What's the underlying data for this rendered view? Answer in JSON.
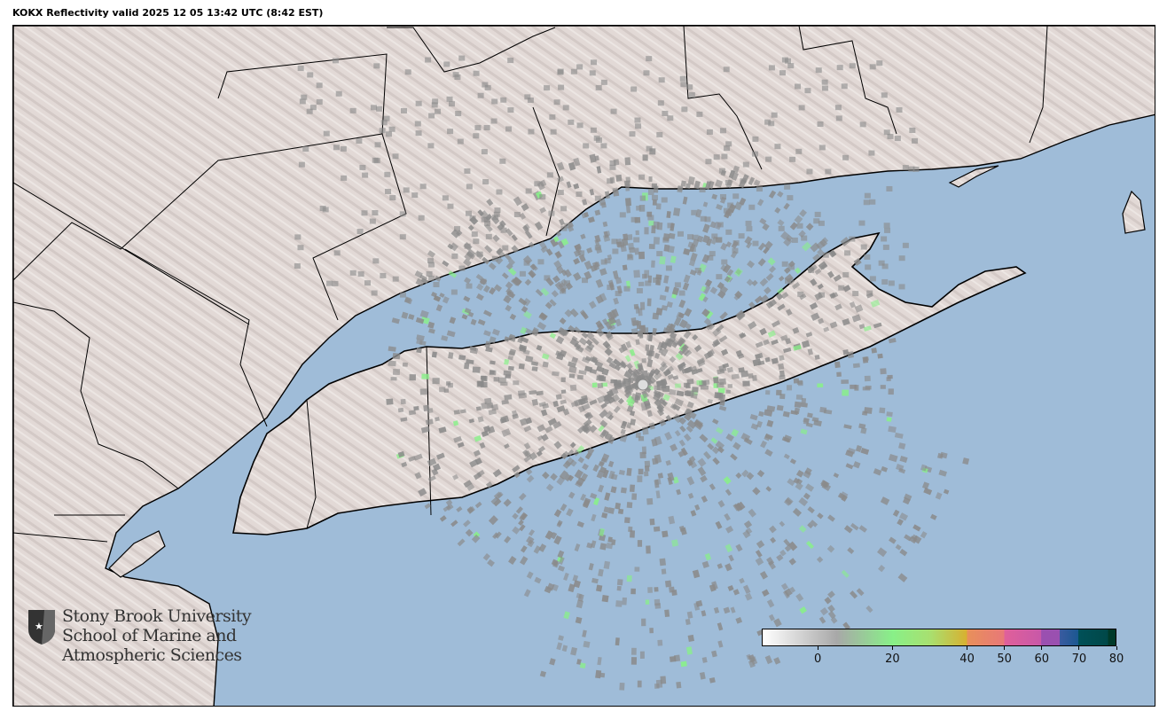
{
  "title": "KOKX Reflectivity valid 2025 12 05 13:42 UTC (8:42 EST)",
  "logo": {
    "line1": "Stony Brook University",
    "line2": "School of Marine and",
    "line3": "Atmospheric Sciences"
  },
  "colorbar": {
    "range": [
      -15,
      80
    ],
    "ticks": [
      "0",
      "20",
      "40",
      "50",
      "60",
      "70",
      "80"
    ],
    "tick_values": [
      0,
      20,
      40,
      50,
      60,
      70,
      80
    ],
    "stops": [
      {
        "value": -15,
        "color": "#ffffff"
      },
      {
        "value": 5,
        "color": "#a8a8a8"
      },
      {
        "value": 20,
        "color": "#88f088"
      },
      {
        "value": 30,
        "color": "#a8e070"
      },
      {
        "value": 40,
        "color": "#d8b030"
      },
      {
        "value": 40.01,
        "color": "#e8905a"
      },
      {
        "value": 50,
        "color": "#e87878"
      },
      {
        "value": 50.01,
        "color": "#e0609a"
      },
      {
        "value": 60,
        "color": "#c858a8"
      },
      {
        "value": 60.01,
        "color": "#9a50b0"
      },
      {
        "value": 65,
        "color": "#9a50b0"
      },
      {
        "value": 65.01,
        "color": "#3a5aa0"
      },
      {
        "value": 70,
        "color": "#1a5890"
      },
      {
        "value": 70.01,
        "color": "#005058"
      },
      {
        "value": 78,
        "color": "#004848"
      },
      {
        "value": 78.01,
        "color": "#003a2a"
      },
      {
        "value": 80,
        "color": "#003a2a"
      }
    ]
  },
  "colors": {
    "water": "#9fbcd8",
    "land": "#e2d9d6",
    "border": "#000000",
    "echo_light": "#8a8a8a",
    "echo_green": "#88f088"
  }
}
